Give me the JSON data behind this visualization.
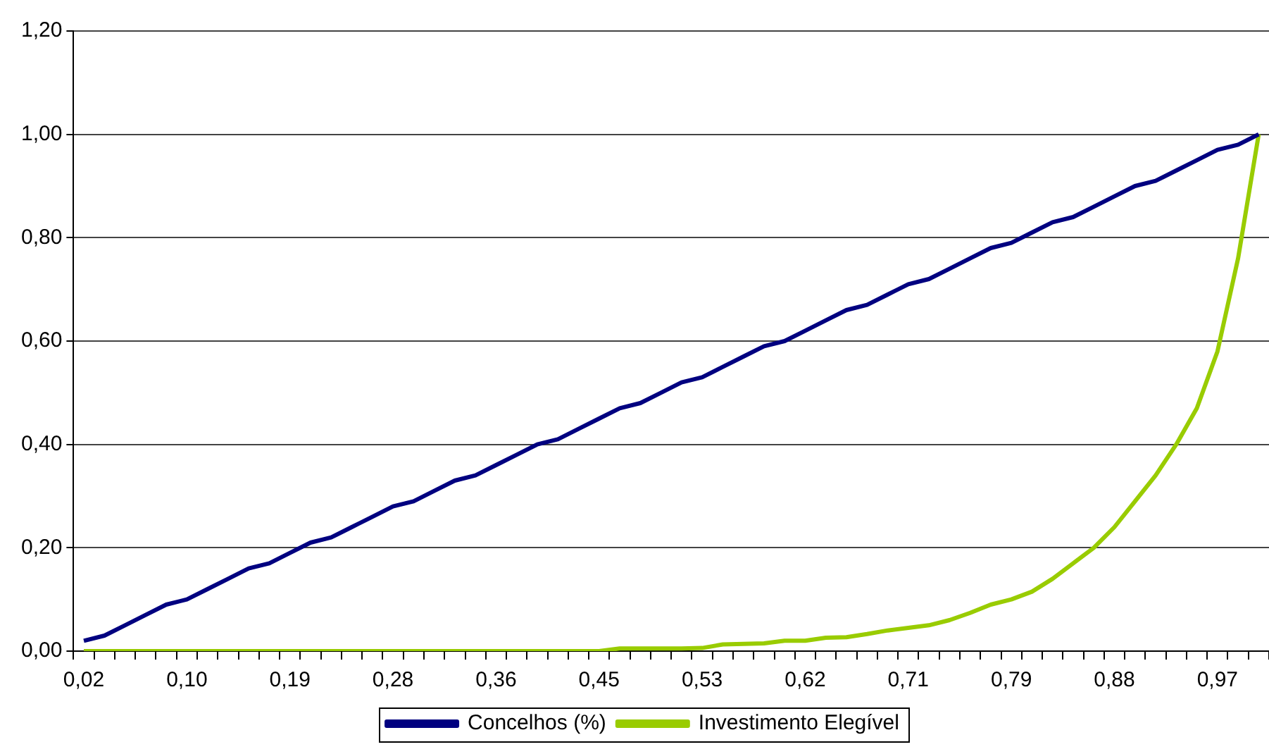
{
  "chart_data": {
    "type": "line",
    "categories": [
      "0,02",
      null,
      null,
      null,
      null,
      "0,10",
      null,
      null,
      null,
      null,
      "0,19",
      null,
      null,
      null,
      null,
      "0,28",
      null,
      null,
      null,
      null,
      "0,36",
      null,
      null,
      null,
      null,
      "0,45",
      null,
      null,
      null,
      null,
      "0,53",
      null,
      null,
      null,
      null,
      "0,62",
      null,
      null,
      null,
      null,
      "0,71",
      null,
      null,
      null,
      null,
      "0,79",
      null,
      null,
      null,
      null,
      "0,88",
      null,
      null,
      null,
      null,
      "0,97",
      null,
      null
    ],
    "series": [
      {
        "name": "Concelhos (%)",
        "color": "#000080",
        "values": [
          0.02,
          0.03,
          0.05,
          0.07,
          0.09,
          0.1,
          0.12,
          0.14,
          0.16,
          0.17,
          0.19,
          0.21,
          0.22,
          0.24,
          0.26,
          0.28,
          0.29,
          0.31,
          0.33,
          0.34,
          0.36,
          0.38,
          0.4,
          0.41,
          0.43,
          0.45,
          0.47,
          0.48,
          0.5,
          0.52,
          0.53,
          0.55,
          0.57,
          0.59,
          0.6,
          0.62,
          0.64,
          0.66,
          0.67,
          0.69,
          0.71,
          0.72,
          0.74,
          0.76,
          0.78,
          0.79,
          0.81,
          0.83,
          0.84,
          0.86,
          0.88,
          0.9,
          0.91,
          0.93,
          0.95,
          0.97,
          0.98,
          1.0
        ]
      },
      {
        "name": "Investimento Elegível",
        "color": "#99cc00",
        "values": [
          0,
          0,
          0,
          0,
          0,
          0,
          0,
          0,
          0,
          0,
          0,
          0,
          0,
          0,
          0,
          0,
          0,
          0,
          0,
          0,
          0,
          0,
          0,
          0,
          0,
          0,
          0.005,
          0.005,
          0.005,
          0.005,
          0.006,
          0.013,
          0.014,
          0.015,
          0.02,
          0.02,
          0.026,
          0.027,
          0.033,
          0.04,
          0.045,
          0.05,
          0.06,
          0.074,
          0.09,
          0.1,
          0.115,
          0.14,
          0.17,
          0.2,
          0.24,
          0.29,
          0.34,
          0.4,
          0.47,
          0.58,
          0.76,
          1.0
        ]
      }
    ],
    "ylim": [
      0,
      1.2
    ],
    "yticks": [
      {
        "value": 0,
        "label": "0,00"
      },
      {
        "value": 0.2,
        "label": "0,20"
      },
      {
        "value": 0.4,
        "label": "0,40"
      },
      {
        "value": 0.6,
        "label": "0,60"
      },
      {
        "value": 0.8,
        "label": "0,80"
      },
      {
        "value": 1.0,
        "label": "1,00"
      },
      {
        "value": 1.2,
        "label": "1,20"
      }
    ],
    "grid": "y",
    "legend": "bottom",
    "marker": "none",
    "line_style": "solid"
  }
}
